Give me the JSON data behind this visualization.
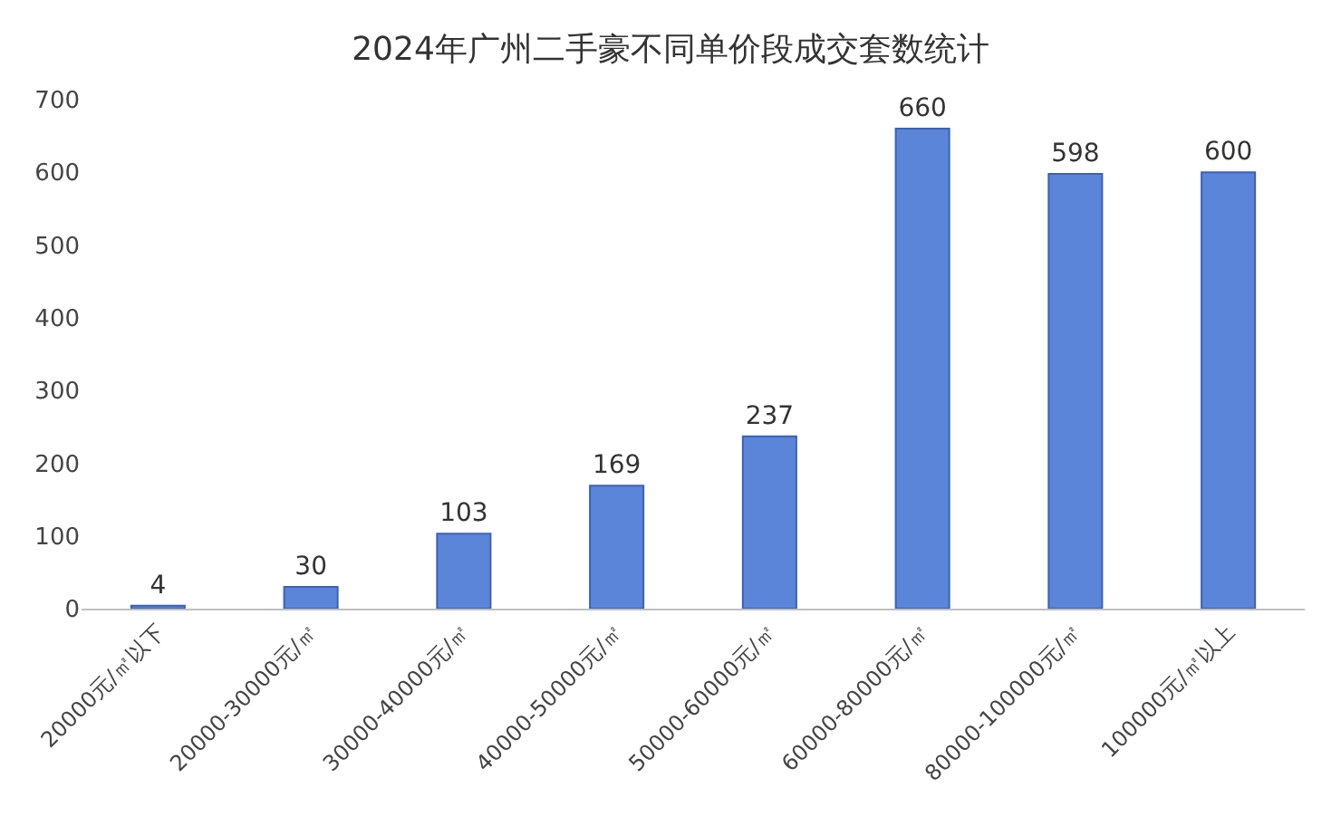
{
  "chart_data": {
    "type": "bar",
    "title": "2024年广州二手豪不同单价段成交套数统计",
    "categories": [
      "20000元/㎡以下",
      "20000-30000元/㎡",
      "30000-40000元/㎡",
      "40000-50000元/㎡",
      "50000-60000元/㎡",
      "60000-80000元/㎡",
      "80000-100000元/㎡",
      "100000元/㎡以上"
    ],
    "values": [
      4,
      30,
      103,
      169,
      237,
      660,
      598,
      600
    ],
    "color": "#5b85d8",
    "ylim": [
      0,
      700
    ],
    "yticks": [
      0,
      100,
      200,
      300,
      400,
      500,
      600,
      700
    ],
    "data_labels": true,
    "grid": false,
    "legend": false
  }
}
